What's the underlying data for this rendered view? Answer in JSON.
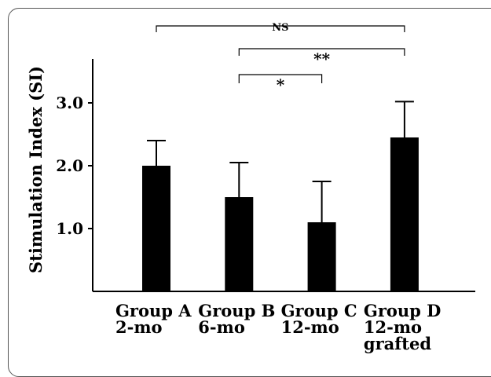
{
  "chart_data": {
    "type": "bar",
    "title": "",
    "xlabel": "",
    "ylabel": "Stimulation  Index (SI)",
    "ylim": [
      0,
      3.7
    ],
    "yticks": [
      "1.0",
      "2.0",
      "3.0"
    ],
    "yticks_values": [
      1.0,
      2.0,
      3.0
    ],
    "categories": [
      [
        "Group A",
        "2-mo"
      ],
      [
        "Group B",
        "6-mo"
      ],
      [
        "Group C",
        "12-mo"
      ],
      [
        "Group D",
        "12-mo",
        "grafted"
      ]
    ],
    "values": [
      2.0,
      1.5,
      1.1,
      2.45
    ],
    "error_upper": [
      2.4,
      2.05,
      1.75,
      3.02
    ],
    "bar_color": "#000000",
    "grid": false,
    "significance": [
      {
        "from": 0,
        "to": 3,
        "label": "NS"
      },
      {
        "from": 1,
        "to": 3,
        "label": "**"
      },
      {
        "from": 1,
        "to": 2,
        "label": "*"
      }
    ]
  }
}
